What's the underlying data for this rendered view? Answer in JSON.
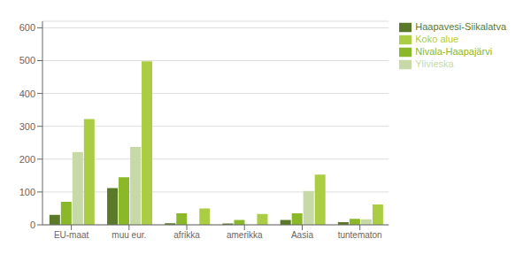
{
  "chart_data": {
    "type": "bar",
    "categories": [
      "EU-maat",
      "muu eur.",
      "afrikka",
      "amerikka",
      "Aasia",
      "tuntematon"
    ],
    "series": [
      {
        "name": "Haapavesi-Siikalatva",
        "color": "#5a7a2a",
        "values": [
          30,
          112,
          5,
          4,
          15,
          8
        ]
      },
      {
        "name": "Nivala-Haapajärvi",
        "color": "#8ab828",
        "values": [
          70,
          145,
          35,
          15,
          35,
          18
        ]
      },
      {
        "name": "Ylivieska",
        "color": "#c8d9a8",
        "values": [
          222,
          237,
          0,
          0,
          103,
          17
        ]
      },
      {
        "name": "Koko alue",
        "color": "#aacd44",
        "values": [
          322,
          498,
          50,
          33,
          153,
          62
        ]
      }
    ],
    "ylim": [
      0,
      620
    ],
    "yticks": [
      0,
      100,
      200,
      300,
      400,
      500,
      600
    ],
    "grid": true,
    "legend": "right"
  }
}
